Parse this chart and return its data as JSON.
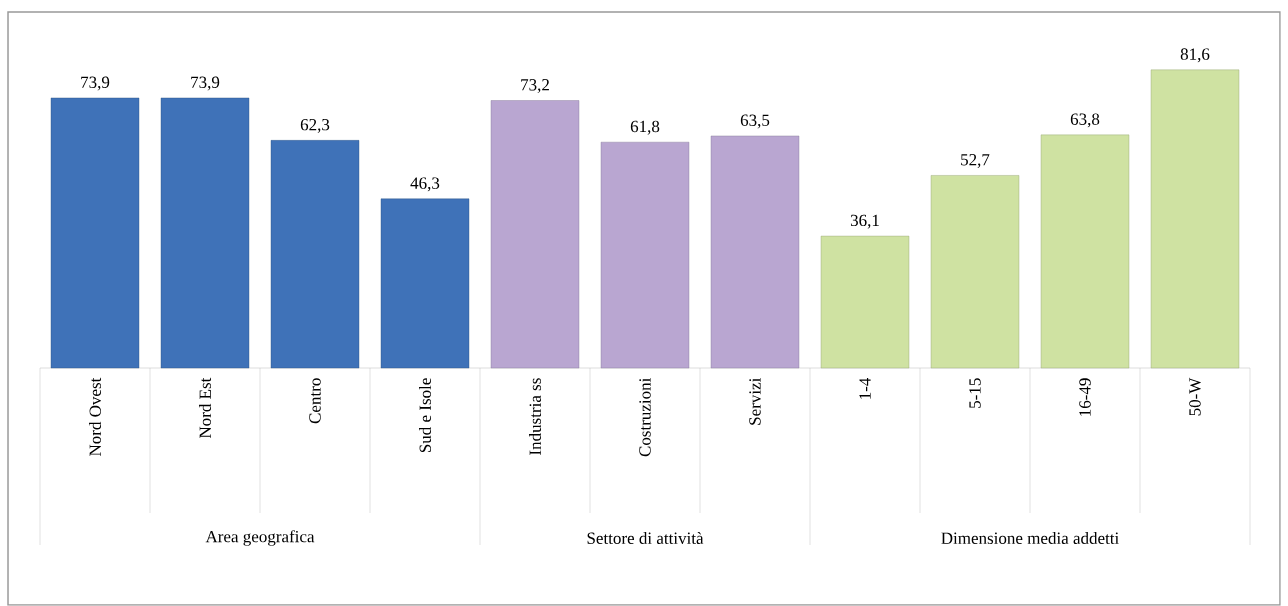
{
  "chart_data": {
    "type": "bar",
    "categories": [
      "Nord Ovest",
      "Nord Est",
      "Centro",
      "Sud e Isole",
      "Industria ss",
      "Costruzioni",
      "Servizi",
      "1-4",
      "5-15",
      "16-49",
      "50-W"
    ],
    "values": [
      73.9,
      73.9,
      62.3,
      46.3,
      73.2,
      61.8,
      63.5,
      36.1,
      52.7,
      63.8,
      81.6
    ],
    "colors": [
      "#3f72b8",
      "#3f72b8",
      "#3f72b8",
      "#3f72b8",
      "#b9a6d1",
      "#b9a6d1",
      "#b9a6d1",
      "#cfe2a2",
      "#cfe2a2",
      "#cfe2a2",
      "#cfe2a2"
    ],
    "value_labels": [
      "73,9",
      "73,9",
      "62,3",
      "46,3",
      "73,2",
      "61,8",
      "63,5",
      "36,1",
      "52,7",
      "63,8",
      "81,6"
    ],
    "annotations": [
      "Area geografica",
      "Settore di attività",
      "Dimensione media addetti"
    ]
  }
}
